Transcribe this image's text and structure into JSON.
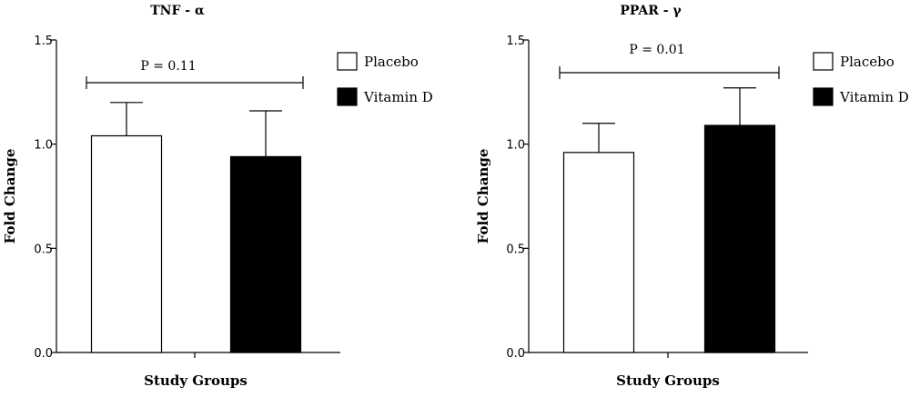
{
  "chart_data": [
    {
      "type": "bar",
      "title": "TNF - α",
      "xlabel": "Study Groups",
      "ylabel": "Fold Change",
      "ylim": [
        0,
        1.5
      ],
      "yticks": [
        "0.0",
        "0.5",
        "1.0",
        "1.5"
      ],
      "categories": [
        "Placebo",
        "Vitamin D"
      ],
      "series": [
        {
          "name": "Placebo",
          "value": 1.04,
          "error": 0.16,
          "fill": "#ffffff"
        },
        {
          "name": "Vitamin D",
          "value": 0.94,
          "error": 0.22,
          "fill": "#000000"
        }
      ],
      "annotation": "P = 0.11",
      "legend": "top-right",
      "grid": false
    },
    {
      "type": "bar",
      "title": "PPAR - γ",
      "xlabel": "Study Groups",
      "ylabel": "Fold Change",
      "ylim": [
        0,
        1.5
      ],
      "yticks": [
        "0.0",
        "0.5",
        "1.0",
        "1.5"
      ],
      "categories": [
        "Placebo",
        "Vitamin D"
      ],
      "series": [
        {
          "name": "Placebo",
          "value": 0.96,
          "error": 0.14,
          "fill": "#ffffff"
        },
        {
          "name": "Vitamin D",
          "value": 1.09,
          "error": 0.18,
          "fill": "#000000"
        }
      ],
      "annotation": "P = 0.01",
      "legend": "top-right",
      "grid": false
    }
  ]
}
